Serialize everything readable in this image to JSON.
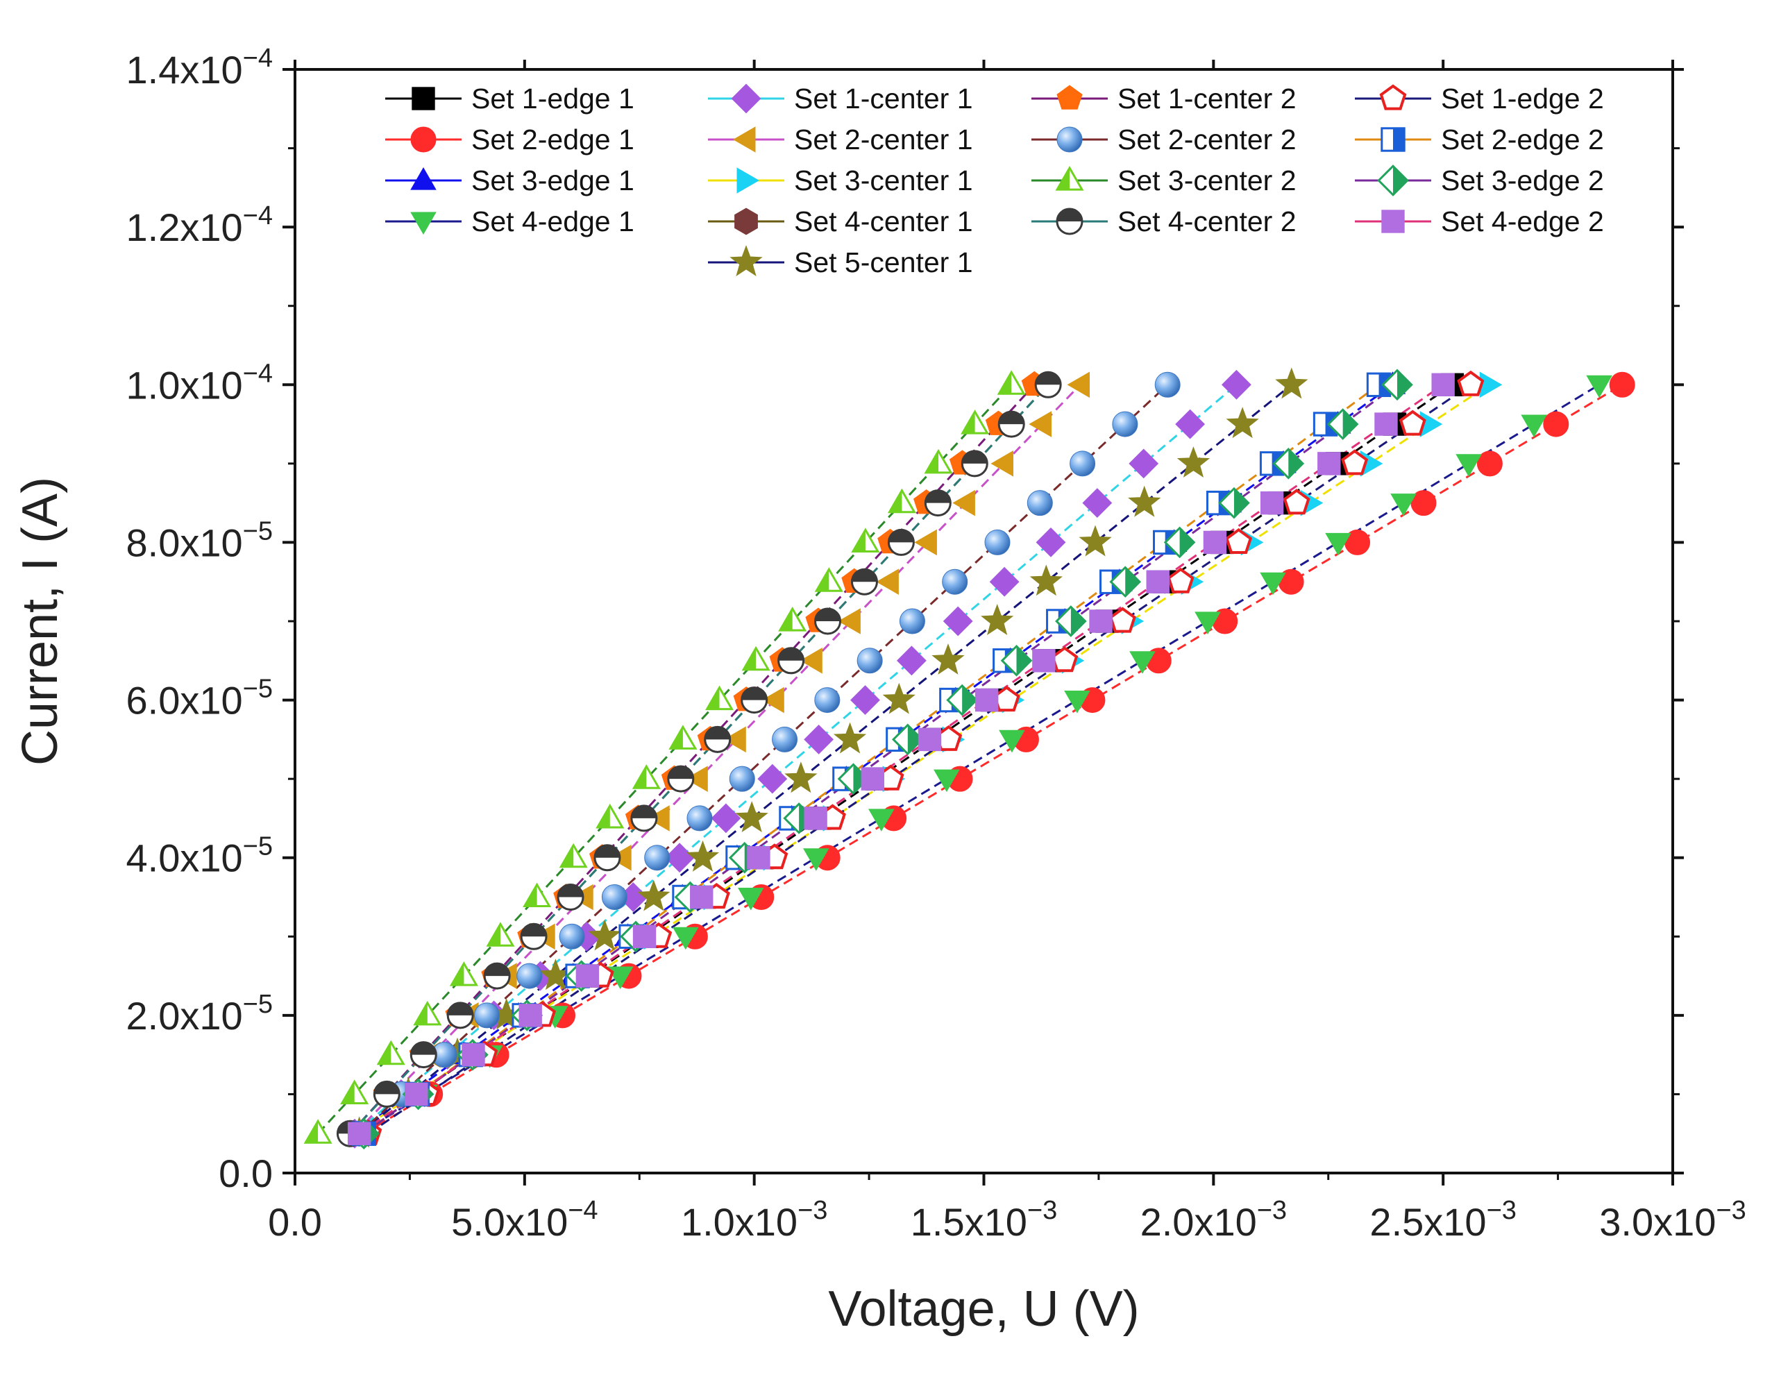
{
  "chart_data": {
    "type": "scatter",
    "title": "",
    "xlabel": "Voltage, U (V)",
    "ylabel": "Current, I (A)",
    "xlim": [
      0,
      0.003
    ],
    "ylim": [
      0,
      0.00014
    ],
    "legend_position": "top",
    "x_ticks": [
      {
        "value": 0,
        "mant": "0.0",
        "exp": ""
      },
      {
        "value": 0.0005,
        "mant": "5.0x10",
        "exp": "−4"
      },
      {
        "value": 0.001,
        "mant": "1.0x10",
        "exp": "−3"
      },
      {
        "value": 0.0015,
        "mant": "1.5x10",
        "exp": "−3"
      },
      {
        "value": 0.002,
        "mant": "2.0x10",
        "exp": "−3"
      },
      {
        "value": 0.0025,
        "mant": "2.5x10",
        "exp": "−3"
      },
      {
        "value": 0.003,
        "mant": "3.0x10",
        "exp": "−3"
      }
    ],
    "y_ticks": [
      {
        "value": 0,
        "mant": "0.0",
        "exp": ""
      },
      {
        "value": 2e-05,
        "mant": "2.0x10",
        "exp": "−5"
      },
      {
        "value": 4e-05,
        "mant": "4.0x10",
        "exp": "−5"
      },
      {
        "value": 6e-05,
        "mant": "6.0x10",
        "exp": "−5"
      },
      {
        "value": 8e-05,
        "mant": "8.0x10",
        "exp": "−5"
      },
      {
        "value": 0.0001,
        "mant": "1.0x10",
        "exp": "−4"
      },
      {
        "value": 0.00012,
        "mant": "1.2x10",
        "exp": "−4"
      },
      {
        "value": 0.00014,
        "mant": "1.4x10",
        "exp": "−4"
      }
    ],
    "current_values": [
      5e-06,
      1e-05,
      1.5e-05,
      2e-05,
      2.5e-05,
      3e-05,
      3.5e-05,
      4e-05,
      4.5e-05,
      5e-05,
      5.5e-05,
      6e-05,
      6.5e-05,
      7e-05,
      7.5e-05,
      8e-05,
      8.5e-05,
      9e-05,
      9.5e-05,
      0.0001
    ],
    "series": [
      {
        "name": "Set 1-edge 1",
        "marker": "square",
        "color": "#000000",
        "line_color": "#000000",
        "v_start": 0.00014,
        "v_end": 0.00252
      },
      {
        "name": "Set 2-edge 1",
        "marker": "circle",
        "color": "#ff2a2a",
        "line_color": "#ff2a2a",
        "v_start": 0.00015,
        "v_end": 0.00289
      },
      {
        "name": "Set 3-edge 1",
        "marker": "triangle-up",
        "color": "#1010ee",
        "line_color": "#1010ee",
        "v_start": 0.00013,
        "v_end": 0.00239
      },
      {
        "name": "Set 4-edge 1",
        "marker": "triangle-down",
        "color": "#3cc84a",
        "line_color": "#1a1a8e",
        "v_start": 0.00014,
        "v_end": 0.00284
      },
      {
        "name": "Set 1-center 1",
        "marker": "diamond",
        "color": "#a557df",
        "line_color": "#2fd5e6",
        "v_start": 0.00013,
        "v_end": 0.00205
      },
      {
        "name": "Set 2-center 1",
        "marker": "triangle-left",
        "color": "#d89a14",
        "line_color": "#c850c8",
        "v_start": 0.00013,
        "v_end": 0.00171
      },
      {
        "name": "Set 3-center 1",
        "marker": "triangle-right",
        "color": "#19d2f4",
        "line_color": "#f0e000",
        "v_start": 0.00013,
        "v_end": 0.0026
      },
      {
        "name": "Set 4-center 1",
        "marker": "hexagon",
        "color": "#7a3a3a",
        "line_color": "#6b5a12",
        "v_start": 0.00012,
        "v_end": 0.00164
      },
      {
        "name": "Set 5-center 1",
        "marker": "star",
        "color": "#8a8420",
        "line_color": "#14147a",
        "v_start": 0.00014,
        "v_end": 0.00217
      },
      {
        "name": "Set 1-center 2",
        "marker": "pentagon",
        "color": "#ff6a0a",
        "line_color": "#7a1a7a",
        "v_start": 0.00012,
        "v_end": 0.00161
      },
      {
        "name": "Set 2-center 2",
        "marker": "sphere",
        "color": "#5e9be0",
        "line_color": "#7a2a2a",
        "v_start": 0.00014,
        "v_end": 0.0019
      },
      {
        "name": "Set 3-center 2",
        "marker": "triangle-half",
        "color": "#6ed21e",
        "line_color": "#2a8a2a",
        "v_start": 5e-05,
        "v_end": 0.00156
      },
      {
        "name": "Set 4-center 2",
        "marker": "circle-half",
        "color": "#3a3a3a",
        "line_color": "#2a7a7a",
        "v_start": 0.00012,
        "v_end": 0.00164
      },
      {
        "name": "Set 1-edge 2",
        "marker": "pentagon-open",
        "color": "#e82020",
        "line_color": "#1a1a7a",
        "v_start": 0.00016,
        "v_end": 0.00256
      },
      {
        "name": "Set 2-edge 2",
        "marker": "square-half",
        "color": "#1a5ed8",
        "line_color": "#e08a10",
        "v_start": 0.00015,
        "v_end": 0.00236
      },
      {
        "name": "Set 3-edge 2",
        "marker": "diamond-half",
        "color": "#21a35b",
        "line_color": "#7a2a9a",
        "v_start": 0.00015,
        "v_end": 0.0024
      },
      {
        "name": "Set 4-edge 2",
        "marker": "square",
        "color": "#b06ee0",
        "line_color": "#e0307a",
        "v_start": 0.00014,
        "v_end": 0.0025
      }
    ],
    "legend_layout": [
      [
        "Set 1-edge 1",
        "Set 1-center 1",
        "Set 1-center 2",
        "Set 1-edge 2"
      ],
      [
        "Set 2-edge 1",
        "Set 2-center 1",
        "Set 2-center 2",
        "Set 2-edge 2"
      ],
      [
        "Set 3-edge 1",
        "Set 3-center 1",
        "Set 3-center 2",
        "Set 3-edge 2"
      ],
      [
        "Set 4-edge 1",
        "Set 4-center 1",
        "Set 4-center 2",
        "Set 4-edge 2"
      ],
      [
        "",
        "Set 5-center 1",
        "",
        ""
      ]
    ]
  }
}
